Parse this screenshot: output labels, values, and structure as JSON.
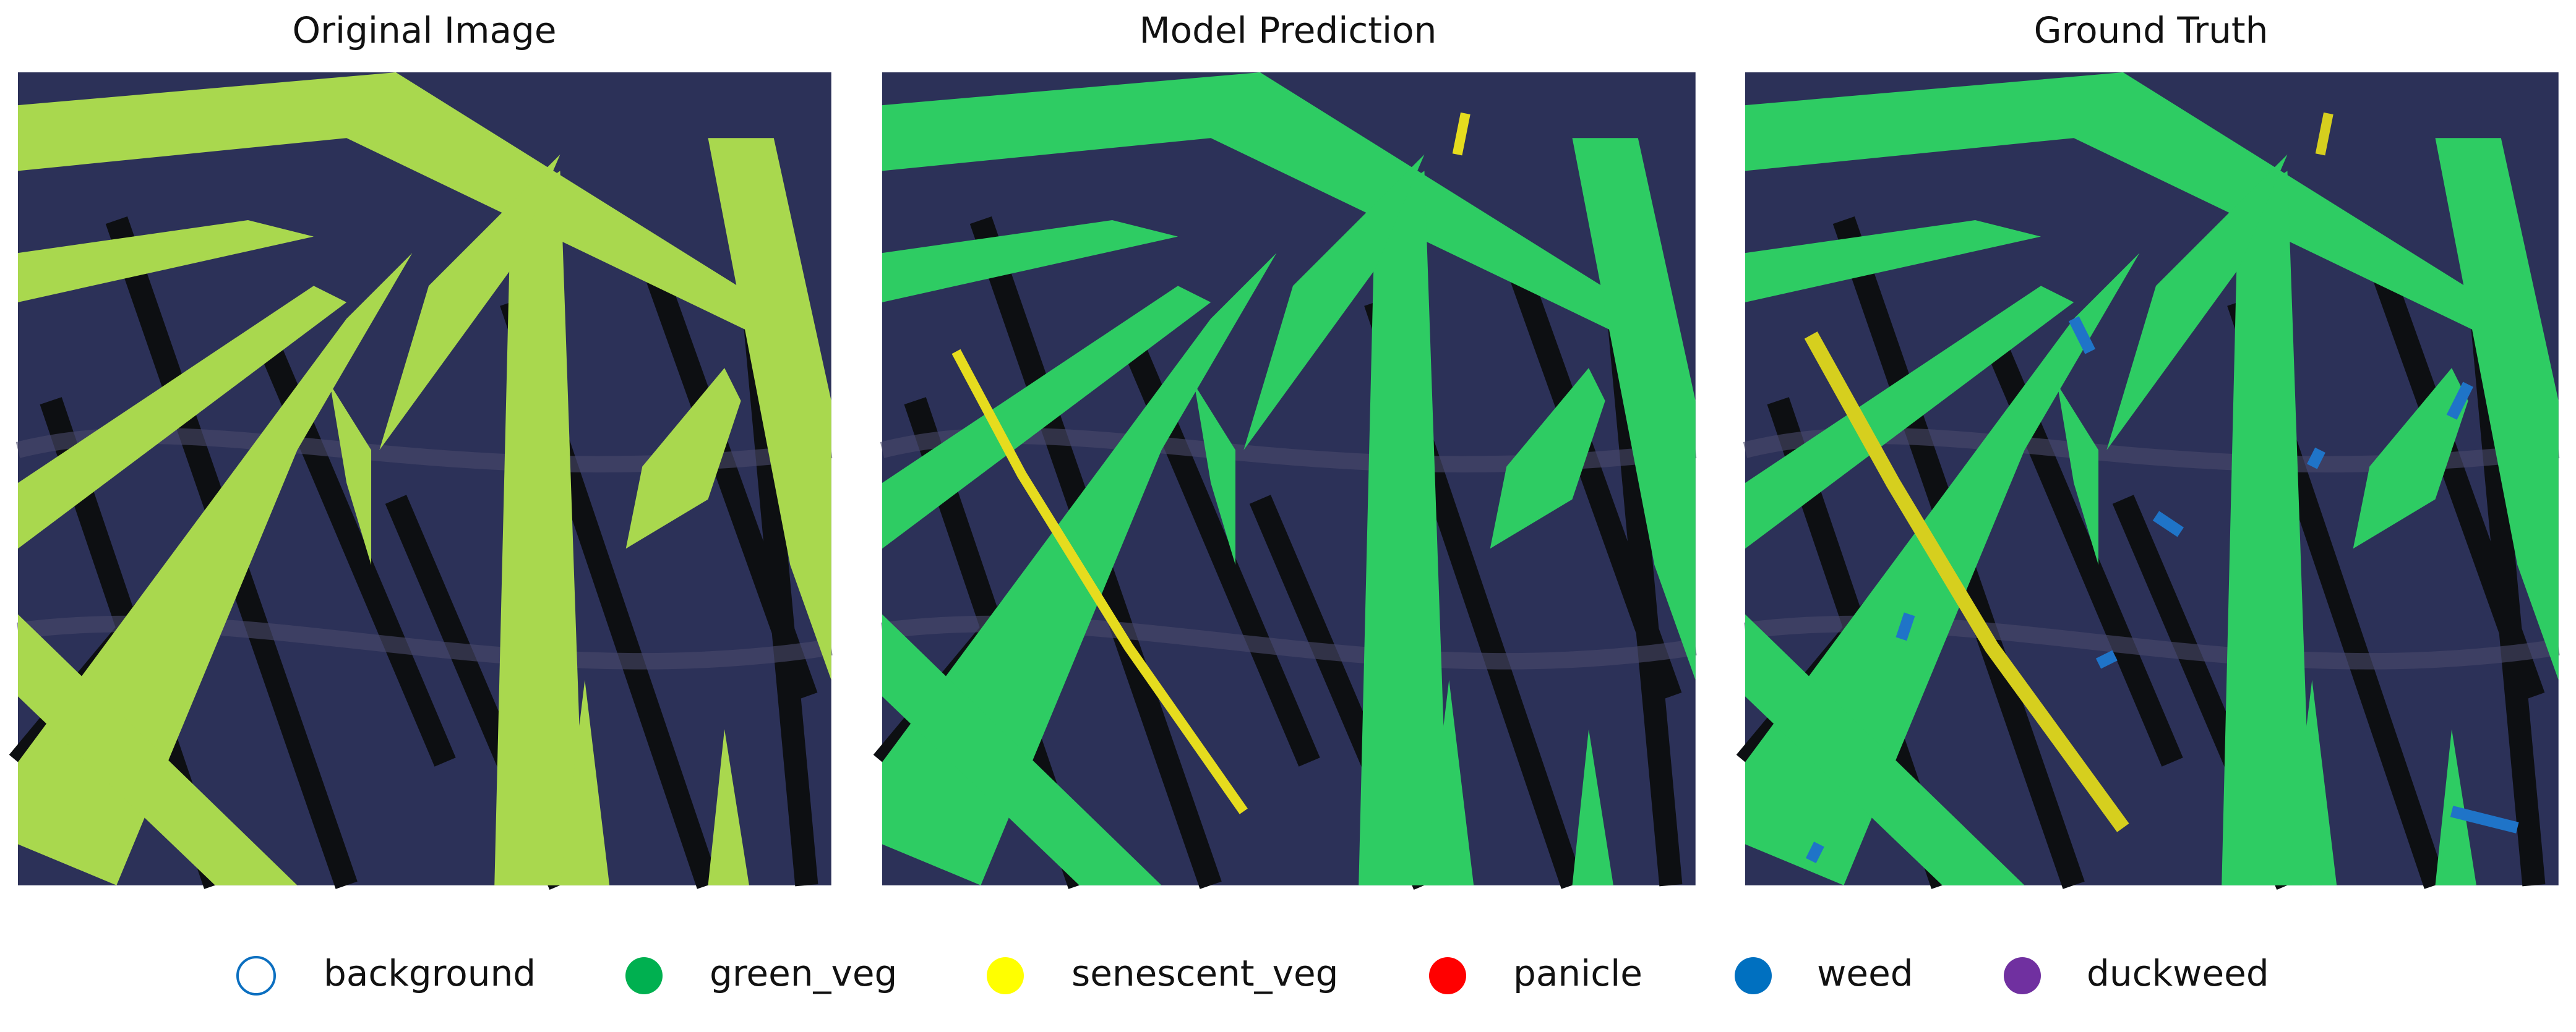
{
  "panels": [
    {
      "title": "Original Image"
    },
    {
      "title": "Model Prediction"
    },
    {
      "title": "Ground Truth"
    }
  ],
  "legend": [
    {
      "label": "background",
      "color": "#0b6fc0",
      "filled": false
    },
    {
      "label": "green_veg",
      "color": "#00b050",
      "filled": true
    },
    {
      "label": "senescent_veg",
      "color": "#ffff00",
      "filled": true
    },
    {
      "label": "panicle",
      "color": "#ff0000",
      "filled": true
    },
    {
      "label": "weed",
      "color": "#0070c0",
      "filled": true
    },
    {
      "label": "duckweed",
      "color": "#7030a0",
      "filled": true
    }
  ]
}
